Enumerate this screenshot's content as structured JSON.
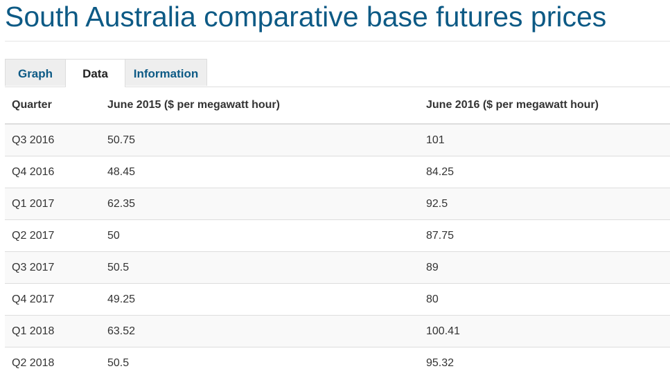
{
  "header": {
    "title": "South Australia comparative base futures prices"
  },
  "tabs": [
    "Graph",
    "Data",
    "Information"
  ],
  "table": {
    "columns": [
      "Quarter",
      "June 2015 ($ per megawatt hour)",
      "June 2016 ($ per megawatt hour)"
    ],
    "rows": [
      [
        "Q3 2016",
        "50.75",
        "101"
      ],
      [
        "Q4 2016",
        "48.45",
        "84.25"
      ],
      [
        "Q1 2017",
        "62.35",
        "92.5"
      ],
      [
        "Q2 2017",
        "50",
        "87.75"
      ],
      [
        "Q3 2017",
        "50.5",
        "89"
      ],
      [
        "Q4 2017",
        "49.25",
        "80"
      ],
      [
        "Q1 2018",
        "63.52",
        "100.41"
      ],
      [
        "Q2 2018",
        "50.5",
        "95.32"
      ]
    ]
  }
}
